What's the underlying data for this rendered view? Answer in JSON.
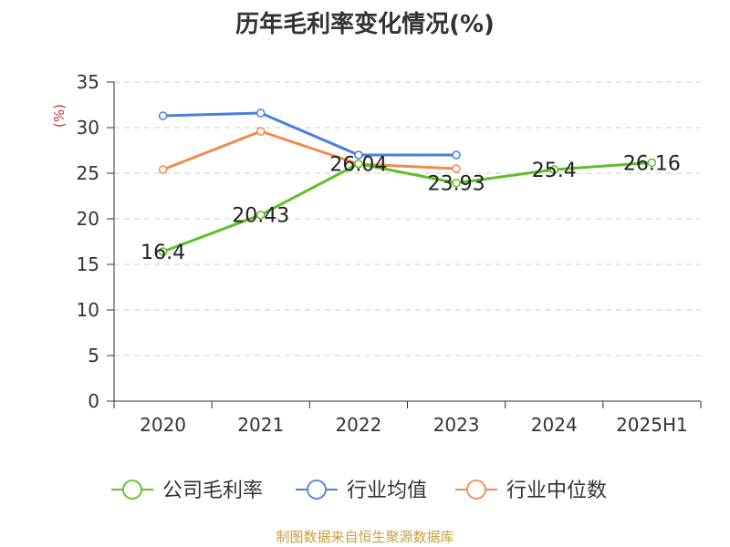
{
  "title": "历年毛利率变化情况(%)",
  "source": "制图数据来自恒生聚源数据库",
  "chart_data": {
    "type": "line",
    "title": "历年毛利率变化情况(%)",
    "ylabel": "(%)",
    "xlabel": "",
    "categories": [
      "2020",
      "2021",
      "2022",
      "2023",
      "2024",
      "2025H1"
    ],
    "ylim": [
      0,
      35
    ],
    "yticks": [
      0,
      5,
      10,
      15,
      20,
      25,
      30,
      35
    ],
    "grid": true,
    "legend_position": "bottom",
    "series": [
      {
        "name": "公司毛利率",
        "color": "#5cc025",
        "values": [
          16.4,
          20.43,
          26.04,
          23.93,
          25.4,
          26.16
        ],
        "labels": [
          "16.4",
          "20.43",
          "26.04",
          "23.93",
          "25.4",
          "26.16"
        ]
      },
      {
        "name": "行业均值",
        "color": "#4a7fe0",
        "values": [
          31.3,
          31.6,
          27.0,
          27.0,
          null,
          null
        ]
      },
      {
        "name": "行业中位数",
        "color": "#f5894a",
        "values": [
          25.4,
          29.6,
          26.0,
          25.5,
          null,
          null
        ]
      }
    ]
  }
}
